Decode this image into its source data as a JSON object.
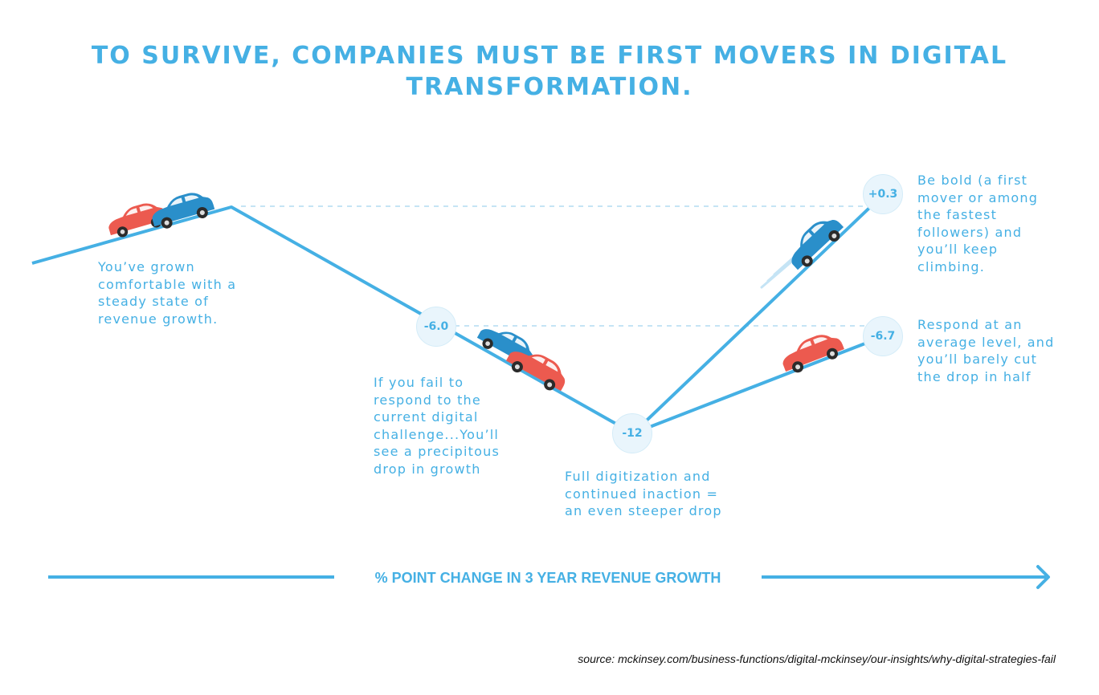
{
  "title": "TO SURVIVE, COMPANIES MUST BE FIRST MOVERS IN DIGITAL TRANSFORMATION.",
  "steps": [
    {
      "text": "You’ve grown\ncomfortable with a\nsteady state of\nrevenue growth."
    },
    {
      "text": "If you fail to\nrespond to the\ncurrent digital\nchallenge...You’ll\nsee a precipitous\ndrop in growth"
    },
    {
      "text": "Full digitization and\ncontinued inaction =\nan even steeper drop"
    },
    {
      "text": "Be bold (a first\nmover or among\nthe fastest\nfollowers) and\nyou’ll keep\nclimbing."
    },
    {
      "text": "Respond at an\naverage level, and\nyou’ll barely cut\nthe drop in half"
    }
  ],
  "values": {
    "fail_to_respond": "-6.0",
    "full_digitization": "-12",
    "be_bold": "+0.3",
    "respond_average": "-6.7"
  },
  "axis_label": "% POINT CHANGE IN 3 YEAR REVENUE GROWTH",
  "source": "source: mckinsey.com/business-functions/digital-mckinsey/our-insights/why-digital-strategies-fail",
  "colors": {
    "accent": "#45b0e4",
    "badge_fill": "#e9f5fc",
    "car_red": "#ec5a4f",
    "car_blue": "#2a8fca"
  }
}
